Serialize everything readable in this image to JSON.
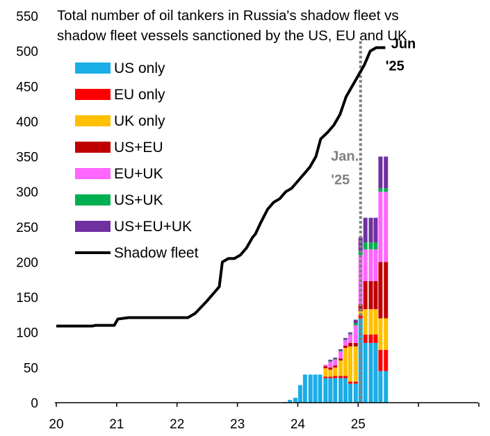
{
  "chart_data": {
    "type": "bar",
    "title": [
      "Total number of oil tankers in Russia's shadow fleet vs",
      "shadow fleet vessels sanctioned by the US, EU and UK"
    ],
    "xlabel": "",
    "ylabel": "",
    "xlim": [
      20,
      27
    ],
    "ylim": [
      0,
      550
    ],
    "x_ticks": [
      20,
      21,
      22,
      23,
      24,
      25
    ],
    "y_ticks": [
      0,
      50,
      100,
      150,
      200,
      250,
      300,
      350,
      400,
      450,
      500,
      550
    ],
    "grid": false,
    "legend_position": "top-left",
    "bar_series": [
      {
        "name": "US only",
        "color": "#1AADE6"
      },
      {
        "name": "EU only",
        "color": "#FF0000"
      },
      {
        "name": "UK only",
        "color": "#FFC000"
      },
      {
        "name": "US+EU",
        "color": "#C00000"
      },
      {
        "name": "EU+UK",
        "color": "#FF66FF"
      },
      {
        "name": "US+UK",
        "color": "#00B050"
      },
      {
        "name": "US+EU+UK",
        "color": "#7030A0"
      }
    ],
    "bars": [
      {
        "x": 23.79,
        "values": [
          1,
          0,
          0,
          0,
          0,
          0,
          0
        ]
      },
      {
        "x": 23.87,
        "values": [
          4,
          0,
          0,
          0,
          0,
          0,
          0
        ]
      },
      {
        "x": 23.96,
        "values": [
          7,
          0,
          0,
          0,
          0,
          0,
          0
        ]
      },
      {
        "x": 24.04,
        "values": [
          25,
          0,
          0,
          0,
          0,
          0,
          0
        ]
      },
      {
        "x": 24.12,
        "values": [
          40,
          0,
          0,
          0,
          0,
          0,
          0
        ]
      },
      {
        "x": 24.21,
        "values": [
          40,
          0,
          0,
          0,
          0,
          0,
          0
        ]
      },
      {
        "x": 24.29,
        "values": [
          40,
          0,
          0,
          0,
          0,
          0,
          0
        ]
      },
      {
        "x": 24.37,
        "values": [
          40,
          0,
          0,
          0,
          0,
          0,
          0
        ]
      },
      {
        "x": 24.46,
        "values": [
          35,
          2,
          12,
          3,
          2,
          0,
          0
        ]
      },
      {
        "x": 24.54,
        "values": [
          35,
          2,
          10,
          3,
          8,
          1,
          2
        ]
      },
      {
        "x": 24.62,
        "values": [
          35,
          3,
          12,
          3,
          8,
          1,
          2
        ]
      },
      {
        "x": 24.71,
        "values": [
          35,
          3,
          22,
          3,
          10,
          1,
          2
        ]
      },
      {
        "x": 24.79,
        "values": [
          35,
          3,
          40,
          3,
          8,
          1,
          2
        ]
      },
      {
        "x": 24.87,
        "values": [
          27,
          3,
          50,
          5,
          12,
          1,
          2
        ]
      },
      {
        "x": 24.96,
        "values": [
          27,
          3,
          50,
          5,
          25,
          3,
          5
        ]
      },
      {
        "x": 25.04,
        "values": [
          120,
          5,
          5,
          10,
          70,
          5,
          20
        ]
      },
      {
        "x": 25.12,
        "values": [
          85,
          12,
          36,
          40,
          45,
          10,
          35
        ]
      },
      {
        "x": 25.21,
        "values": [
          85,
          12,
          36,
          40,
          45,
          10,
          35
        ]
      },
      {
        "x": 25.29,
        "values": [
          85,
          12,
          36,
          40,
          45,
          10,
          35
        ]
      },
      {
        "x": 25.37,
        "values": [
          45,
          30,
          45,
          80,
          100,
          5,
          45
        ]
      },
      {
        "x": 25.46,
        "values": [
          45,
          30,
          45,
          80,
          100,
          5,
          45
        ]
      }
    ],
    "line_series": {
      "name": "Shadow fleet",
      "color": "#000000",
      "points": [
        [
          20.0,
          109
        ],
        [
          20.3,
          109
        ],
        [
          20.6,
          109
        ],
        [
          20.65,
          110
        ],
        [
          20.96,
          110
        ],
        [
          21.02,
          119
        ],
        [
          21.2,
          121
        ],
        [
          21.5,
          121
        ],
        [
          22.0,
          121
        ],
        [
          22.18,
          121
        ],
        [
          22.3,
          127
        ],
        [
          22.5,
          145
        ],
        [
          22.7,
          165
        ],
        [
          22.75,
          200
        ],
        [
          22.85,
          205
        ],
        [
          22.95,
          205
        ],
        [
          23.05,
          210
        ],
        [
          23.15,
          220
        ],
        [
          23.25,
          235
        ],
        [
          23.3,
          240
        ],
        [
          23.38,
          255
        ],
        [
          23.5,
          275
        ],
        [
          23.6,
          285
        ],
        [
          23.7,
          290
        ],
        [
          23.8,
          300
        ],
        [
          23.9,
          305
        ],
        [
          24.0,
          315
        ],
        [
          24.1,
          325
        ],
        [
          24.2,
          335
        ],
        [
          24.3,
          350
        ],
        [
          24.38,
          375
        ],
        [
          24.5,
          385
        ],
        [
          24.6,
          395
        ],
        [
          24.7,
          410
        ],
        [
          24.8,
          435
        ],
        [
          24.9,
          450
        ],
        [
          25.0,
          465
        ],
        [
          25.1,
          480
        ],
        [
          25.2,
          500
        ],
        [
          25.3,
          505
        ],
        [
          25.45,
          505
        ]
      ]
    },
    "vline": {
      "x": 25.04
    },
    "annotations": [
      {
        "text": [
          "Jun",
          "'25"
        ],
        "x": 25.5,
        "y": 505
      },
      {
        "text": [
          "Jan.",
          "'25"
        ],
        "x": 24.55,
        "y": 350
      }
    ]
  }
}
